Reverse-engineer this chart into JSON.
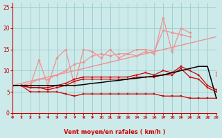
{
  "x": [
    0,
    1,
    2,
    3,
    4,
    5,
    6,
    7,
    8,
    9,
    10,
    11,
    12,
    13,
    14,
    15,
    16,
    17,
    18,
    19,
    20,
    21,
    22,
    23
  ],
  "lines": [
    {
      "name": "light_pink_volatile_upper",
      "color": "#f09090",
      "lw": 0.9,
      "marker": "D",
      "ms": 1.8,
      "y": [
        6.5,
        6.5,
        6.5,
        12.5,
        6.5,
        13.0,
        15.0,
        6.5,
        15.0,
        14.5,
        13.0,
        15.0,
        13.0,
        14.0,
        13.5,
        14.5,
        14.0,
        22.5,
        14.5,
        20.0,
        19.0,
        null,
        null,
        9.5
      ]
    },
    {
      "name": "light_pink_upper_smooth",
      "color": "#f09090",
      "lw": 0.9,
      "marker": "D",
      "ms": 1.8,
      "y": [
        6.5,
        6.5,
        7.0,
        8.0,
        8.0,
        9.0,
        10.0,
        11.5,
        12.0,
        13.5,
        14.0,
        13.5,
        14.0,
        14.0,
        15.0,
        15.0,
        14.5,
        19.5,
        19.0,
        18.5,
        18.0,
        null,
        null,
        9.0
      ]
    },
    {
      "name": "light_pink_trend_line",
      "color": "#f09090",
      "lw": 1.0,
      "marker": null,
      "ms": 0,
      "y": [
        6.5,
        7.0,
        7.5,
        8.0,
        8.5,
        9.0,
        9.5,
        10.0,
        10.5,
        11.0,
        11.5,
        12.0,
        12.5,
        13.0,
        13.5,
        14.0,
        14.5,
        15.0,
        15.5,
        16.0,
        16.5,
        17.0,
        17.5,
        18.0
      ]
    },
    {
      "name": "dark_red_flat_bottom",
      "color": "#cc0000",
      "lw": 0.9,
      "marker": "s",
      "ms": 1.8,
      "y": [
        6.5,
        6.5,
        5.0,
        5.0,
        5.0,
        5.0,
        4.5,
        4.0,
        4.5,
        4.5,
        4.5,
        4.5,
        4.5,
        4.5,
        4.5,
        4.5,
        4.5,
        4.0,
        4.0,
        4.0,
        3.5,
        3.5,
        3.5,
        3.5
      ]
    },
    {
      "name": "dark_red_mid",
      "color": "#cc0000",
      "lw": 0.9,
      "marker": "s",
      "ms": 1.8,
      "y": [
        6.5,
        6.5,
        6.0,
        6.0,
        5.5,
        6.0,
        6.5,
        7.5,
        8.0,
        8.0,
        8.0,
        8.0,
        8.0,
        8.0,
        8.5,
        8.5,
        8.5,
        9.0,
        9.0,
        10.5,
        8.5,
        8.0,
        6.0,
        5.0
      ]
    },
    {
      "name": "dark_red_upper",
      "color": "#cc0000",
      "lw": 0.9,
      "marker": "s",
      "ms": 1.8,
      "y": [
        6.5,
        6.5,
        6.0,
        6.0,
        6.0,
        6.5,
        7.0,
        8.0,
        8.5,
        8.5,
        8.5,
        8.5,
        8.5,
        8.5,
        9.0,
        9.5,
        9.0,
        10.0,
        9.5,
        11.0,
        10.0,
        9.0,
        6.5,
        5.5
      ]
    },
    {
      "name": "black_trend_diagonal",
      "color": "#000000",
      "lw": 1.1,
      "marker": null,
      "ms": 0,
      "y": [
        6.5,
        6.5,
        6.5,
        6.5,
        6.5,
        6.5,
        6.5,
        6.5,
        6.7,
        7.0,
        7.2,
        7.5,
        7.7,
        8.0,
        8.2,
        8.5,
        8.7,
        9.0,
        9.5,
        10.0,
        10.5,
        11.0,
        11.0,
        3.5
      ]
    }
  ],
  "xlabel": "Vent moyen/en rafales ( km/h )",
  "xlim": [
    0,
    23
  ],
  "ylim": [
    0,
    26
  ],
  "yticks": [
    0,
    5,
    10,
    15,
    20,
    25
  ],
  "xticks": [
    0,
    1,
    2,
    3,
    4,
    5,
    6,
    7,
    8,
    9,
    10,
    11,
    12,
    13,
    14,
    15,
    16,
    17,
    18,
    19,
    20,
    21,
    22,
    23
  ],
  "bg_color": "#cceaea",
  "grid_color": "#99cccc",
  "tick_color": "#cc0000",
  "xlabel_color": "#cc0000"
}
